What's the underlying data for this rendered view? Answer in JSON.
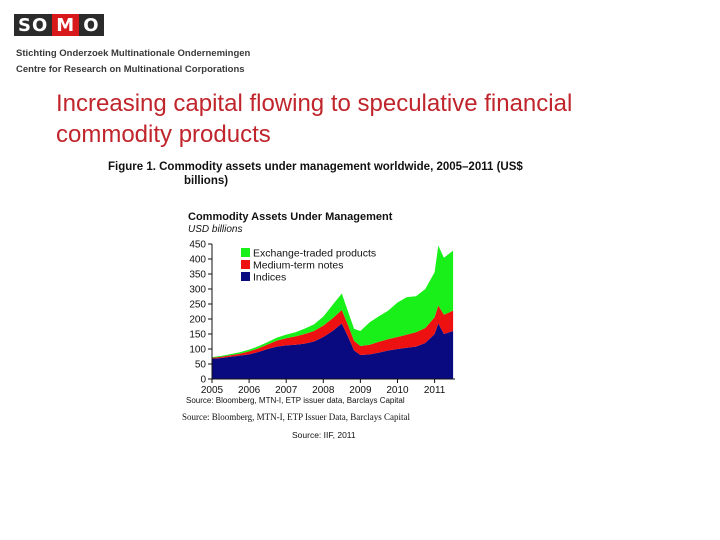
{
  "logo": {
    "part1": "SO",
    "part2": "M",
    "part3": "O"
  },
  "org": {
    "line1": "Stichting Onderzoek Multinationale Ondernemingen",
    "line2": "Centre for Research on Multinational Corporations"
  },
  "slide_title": "Increasing capital flowing to speculative financial commodity products",
  "figure_caption": {
    "line1": "Figure 1. Commodity assets under management worldwide, 2005–2011 (US$",
    "line2": "billions)"
  },
  "colors": {
    "logo_dark": "#2b2b2b",
    "logo_red": "#d7191c",
    "title_red": "#c0252c",
    "etp": "#19f019",
    "mtn": "#ee1111",
    "indices": "#0a0a80"
  },
  "chart_data": {
    "type": "area",
    "stacked": true,
    "title": "Commodity Assets Under Management",
    "ylabel": "USD billions",
    "xlabel": "",
    "ylim": [
      0,
      450
    ],
    "xlim": [
      2005,
      2011.55
    ],
    "yticks": [
      0,
      50,
      100,
      150,
      200,
      250,
      300,
      350,
      400,
      450
    ],
    "xticks": [
      "2005",
      "2006",
      "2007",
      "2008",
      "2009",
      "2010",
      "2011"
    ],
    "grid": false,
    "legend_position": "top-left",
    "x": [
      2005,
      2005.25,
      2005.5,
      2005.75,
      2006,
      2006.25,
      2006.5,
      2006.75,
      2007,
      2007.25,
      2007.5,
      2007.75,
      2008,
      2008.25,
      2008.5,
      2008.67,
      2008.83,
      2009,
      2009.25,
      2009.5,
      2009.75,
      2010,
      2010.25,
      2010.5,
      2010.75,
      2011,
      2011.1,
      2011.25,
      2011.5
    ],
    "series": [
      {
        "name": "Indices",
        "color": "#0a0a80",
        "values": [
          68,
          70,
          74,
          78,
          82,
          90,
          100,
          108,
          112,
          114,
          118,
          125,
          140,
          160,
          185,
          140,
          95,
          80,
          82,
          88,
          95,
          100,
          104,
          108,
          120,
          150,
          185,
          150,
          160
        ]
      },
      {
        "name": "Medium-term notes",
        "color": "#ee1111",
        "values": [
          3,
          4,
          5,
          6,
          10,
          12,
          15,
          20,
          24,
          28,
          32,
          35,
          38,
          42,
          45,
          38,
          32,
          30,
          32,
          36,
          38,
          40,
          44,
          48,
          50,
          56,
          60,
          64,
          68
        ]
      },
      {
        "name": "Exchange-traded products",
        "color": "#19f019",
        "values": [
          2,
          3,
          4,
          5,
          6,
          7,
          8,
          10,
          12,
          14,
          18,
          22,
          30,
          45,
          55,
          45,
          40,
          50,
          75,
          85,
          95,
          115,
          125,
          120,
          130,
          150,
          200,
          190,
          200
        ]
      }
    ],
    "legend": [
      "Exchange-traded products",
      "Medium-term notes",
      "Indices"
    ],
    "source_note": "Source: Bloomberg, MTN-I, ETP issuer data, Barclays Capital"
  },
  "source_line_2": "Source: Bloomberg, MTN-I, ETP Issuer Data, Barclays Capital",
  "source_line_3": "Source: IIF, 2011"
}
